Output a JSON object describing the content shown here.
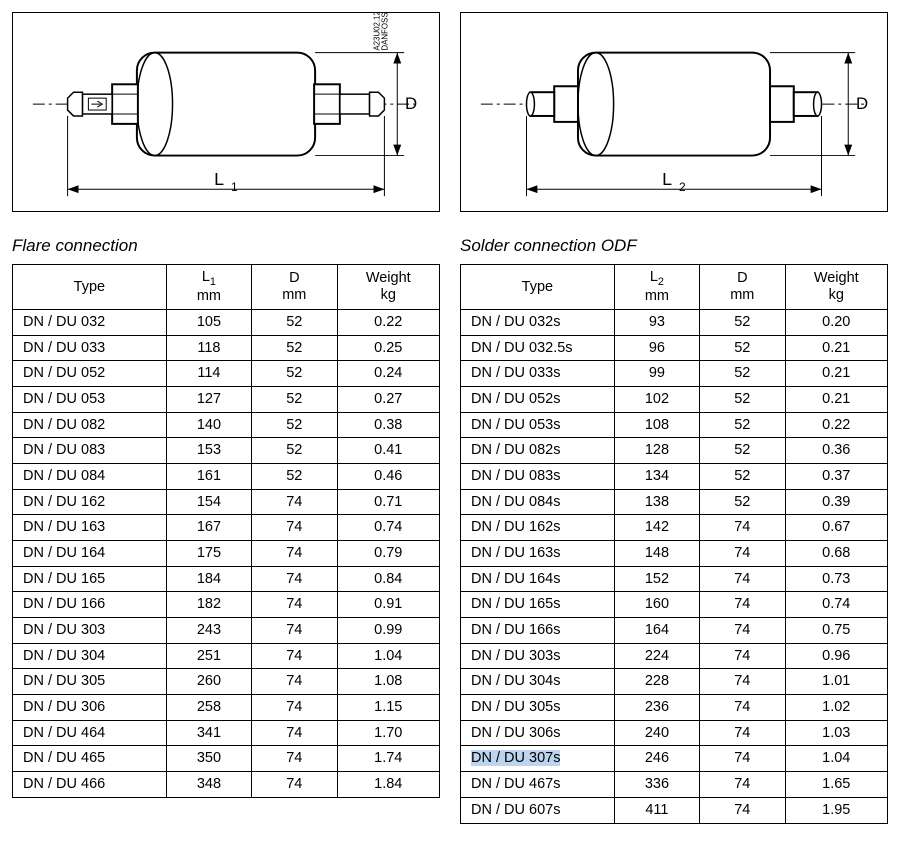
{
  "diagrams": {
    "left": {
      "length_label": "L",
      "length_sub": "1",
      "diameter_label": "D",
      "drawing_ref_a": "DANFOSS",
      "drawing_ref_b": "A23U02.12"
    },
    "right": {
      "length_label": "L",
      "length_sub": "2",
      "diameter_label": "D"
    }
  },
  "flare": {
    "title": "Flare connection",
    "columns": {
      "type": "Type",
      "L_label": "L",
      "L_sub": "1",
      "L_unit": "mm",
      "D_label": "D",
      "D_unit": "mm",
      "W_label": "Weight",
      "W_unit": "kg"
    },
    "rows": [
      {
        "type": "DN / DU 032",
        "L": "105",
        "D": "52",
        "W": "0.22"
      },
      {
        "type": "DN / DU 033",
        "L": "118",
        "D": "52",
        "W": "0.25"
      },
      {
        "type": "DN / DU 052",
        "L": "114",
        "D": "52",
        "W": "0.24"
      },
      {
        "type": "DN / DU 053",
        "L": "127",
        "D": "52",
        "W": "0.27"
      },
      {
        "type": "DN / DU 082",
        "L": "140",
        "D": "52",
        "W": "0.38"
      },
      {
        "type": "DN / DU 083",
        "L": "153",
        "D": "52",
        "W": "0.41"
      },
      {
        "type": "DN / DU 084",
        "L": "161",
        "D": "52",
        "W": "0.46"
      },
      {
        "type": "DN / DU 162",
        "L": "154",
        "D": "74",
        "W": "0.71"
      },
      {
        "type": "DN / DU 163",
        "L": "167",
        "D": "74",
        "W": "0.74"
      },
      {
        "type": "DN / DU 164",
        "L": "175",
        "D": "74",
        "W": "0.79"
      },
      {
        "type": "DN / DU 165",
        "L": "184",
        "D": "74",
        "W": "0.84"
      },
      {
        "type": "DN / DU 166",
        "L": "182",
        "D": "74",
        "W": "0.91"
      },
      {
        "type": "DN / DU 303",
        "L": "243",
        "D": "74",
        "W": "0.99"
      },
      {
        "type": "DN / DU 304",
        "L": "251",
        "D": "74",
        "W": "1.04"
      },
      {
        "type": "DN / DU 305",
        "L": "260",
        "D": "74",
        "W": "1.08"
      },
      {
        "type": "DN / DU 306",
        "L": "258",
        "D": "74",
        "W": "1.15"
      },
      {
        "type": "DN / DU 464",
        "L": "341",
        "D": "74",
        "W": "1.70"
      },
      {
        "type": "DN / DU 465",
        "L": "350",
        "D": "74",
        "W": "1.74"
      },
      {
        "type": "DN / DU 466",
        "L": "348",
        "D": "74",
        "W": "1.84"
      }
    ]
  },
  "solder": {
    "title": "Solder connection ODF",
    "columns": {
      "type": "Type",
      "L_label": "L",
      "L_sub": "2",
      "L_unit": "mm",
      "D_label": "D",
      "D_unit": "mm",
      "W_label": "Weight",
      "W_unit": "kg"
    },
    "highlight_type": "DN / DU 307s",
    "rows": [
      {
        "type": "DN / DU 032s",
        "L": "93",
        "D": "52",
        "W": "0.20"
      },
      {
        "type": "DN / DU 032.5s",
        "L": "96",
        "D": "52",
        "W": "0.21"
      },
      {
        "type": "DN / DU 033s",
        "L": "99",
        "D": "52",
        "W": "0.21"
      },
      {
        "type": "DN / DU 052s",
        "L": "102",
        "D": "52",
        "W": "0.21"
      },
      {
        "type": "DN / DU 053s",
        "L": "108",
        "D": "52",
        "W": "0.22"
      },
      {
        "type": "DN / DU 082s",
        "L": "128",
        "D": "52",
        "W": "0.36"
      },
      {
        "type": "DN / DU 083s",
        "L": "134",
        "D": "52",
        "W": "0.37"
      },
      {
        "type": "DN / DU 084s",
        "L": "138",
        "D": "52",
        "W": "0.39"
      },
      {
        "type": "DN / DU 162s",
        "L": "142",
        "D": "74",
        "W": "0.67"
      },
      {
        "type": "DN / DU 163s",
        "L": "148",
        "D": "74",
        "W": "0.68"
      },
      {
        "type": "DN / DU 164s",
        "L": "152",
        "D": "74",
        "W": "0.73"
      },
      {
        "type": "DN / DU 165s",
        "L": "160",
        "D": "74",
        "W": "0.74"
      },
      {
        "type": "DN / DU 166s",
        "L": "164",
        "D": "74",
        "W": "0.75"
      },
      {
        "type": "DN / DU 303s",
        "L": "224",
        "D": "74",
        "W": "0.96"
      },
      {
        "type": "DN / DU 304s",
        "L": "228",
        "D": "74",
        "W": "1.01"
      },
      {
        "type": "DN / DU 305s",
        "L": "236",
        "D": "74",
        "W": "1.02"
      },
      {
        "type": "DN / DU 306s",
        "L": "240",
        "D": "74",
        "W": "1.03"
      },
      {
        "type": "DN / DU 307s",
        "L": "246",
        "D": "74",
        "W": "1.04"
      },
      {
        "type": "DN / DU 467s",
        "L": "336",
        "D": "74",
        "W": "1.65"
      },
      {
        "type": "DN / DU 607s",
        "L": "411",
        "D": "74",
        "W": "1.95"
      }
    ]
  },
  "style": {
    "highlight_bg": "#bcd4ee",
    "border_color": "#000000",
    "background": "#ffffff",
    "font_size_table": 14.5,
    "font_size_title": 17
  }
}
